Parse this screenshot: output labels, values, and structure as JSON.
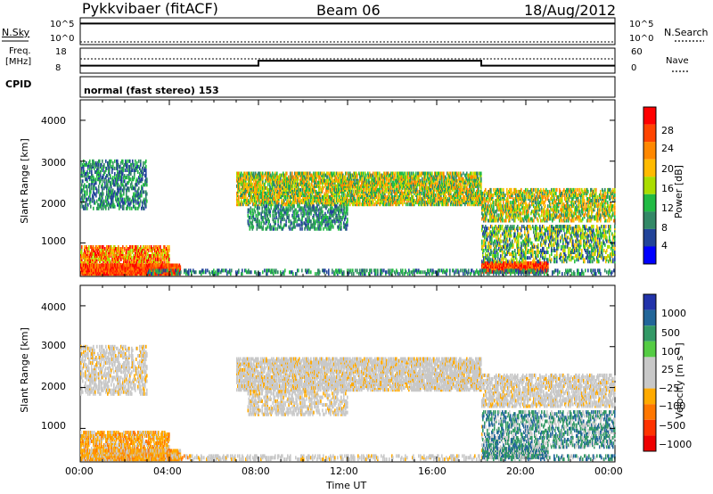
{
  "header": {
    "title": "Pykkvibaer (fitACF)",
    "beam": "Beam 06",
    "date": "18/Aug/2012"
  },
  "panels": {
    "nsky": {
      "left_label": "N.Sky",
      "left_ticks": [
        "10^5",
        "10^0"
      ],
      "right_label": "N.Search",
      "right_ticks": [
        "10^5",
        "10^0"
      ]
    },
    "freq": {
      "left_label_1": "Freq.",
      "left_label_2": "[MHz]",
      "left_ticks": [
        "18",
        "8"
      ],
      "right_label": "Nave",
      "right_ticks": [
        "60",
        "0"
      ]
    },
    "cpid": {
      "label": "CPID",
      "text": "normal (fast stereo) 153"
    }
  },
  "chart_data": [
    {
      "type": "line",
      "name": "nsky_nsearch",
      "x": [
        0,
        3,
        6,
        8,
        12,
        16,
        18,
        21,
        24
      ],
      "y": [
        100000,
        100000,
        100000,
        100000,
        100000,
        100000,
        100000,
        100000,
        100000
      ],
      "ylim": [
        1,
        1000000
      ]
    },
    {
      "type": "line",
      "name": "freq_nave",
      "x": [
        0,
        8,
        8,
        18,
        18,
        24
      ],
      "y": [
        10,
        10,
        12.5,
        12.5,
        10,
        10
      ],
      "ylim": [
        8,
        18
      ]
    },
    {
      "type": "heatmap",
      "name": "power",
      "ylabel": "Slant Range [km]",
      "xlim": [
        0,
        24
      ],
      "ylim": [
        180,
        4500
      ],
      "y_ticks": [
        "4000",
        "3000",
        "2000",
        "1000"
      ],
      "colorbar": {
        "label": "Power [dB]",
        "ticks": [
          "28",
          "24",
          "20",
          "16",
          "12",
          "8",
          "4"
        ],
        "colors": [
          "#ff0000",
          "#ff4400",
          "#ff8800",
          "#ffbb00",
          "#aadd00",
          "#22bb44",
          "#338866",
          "#224499",
          "#0000ff"
        ]
      }
    },
    {
      "type": "heatmap",
      "name": "velocity",
      "ylabel": "Slant Range [km]",
      "xlabel": "Time UT",
      "xlim": [
        0,
        24
      ],
      "ylim": [
        180,
        4500
      ],
      "y_ticks": [
        "4000",
        "3000",
        "2000",
        "1000"
      ],
      "x_ticks": [
        "00:00",
        "04:00",
        "08:00",
        "12:00",
        "16:00",
        "20:00",
        "00:00"
      ],
      "colorbar": {
        "label": "Velocity [m s⁻¹]",
        "ticks": [
          "1000",
          "500",
          "100",
          "25",
          "−25",
          "−100",
          "−500",
          "−1000"
        ],
        "colors": [
          "#2233aa",
          "#226699",
          "#339966",
          "#55cc44",
          "#c8c8c8",
          "#c8c8c8",
          "#ffaa00",
          "#ff7700",
          "#ff3300",
          "#ee0000"
        ]
      }
    }
  ]
}
